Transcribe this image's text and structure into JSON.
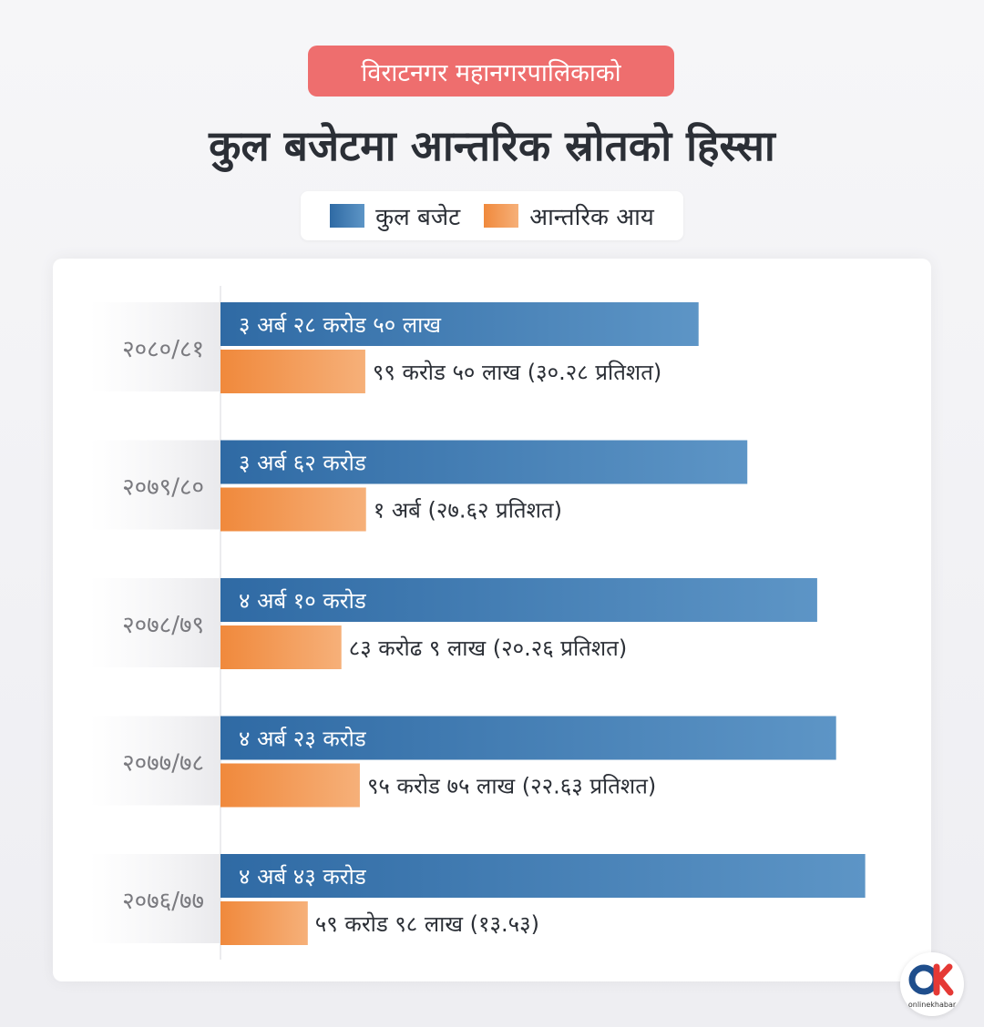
{
  "subtitle": "विराटनगर महानगरपालिकाको",
  "title": "कुल बजेटमा आन्तरिक स्रोतको हिस्सा",
  "legend": {
    "total": "कुल बजेट",
    "internal": "आन्तरिक आय"
  },
  "colors": {
    "total_start": "#2f6aa4",
    "total_end": "#5d95c6",
    "internal_start": "#f0893c",
    "internal_end": "#f6b079",
    "accent": "#ee6e6e"
  },
  "logo": {
    "icon": "onlinekhabar-logo",
    "text": "onlinekhabar"
  },
  "chart_data": {
    "type": "bar",
    "orientation": "horizontal",
    "categories": [
      "२०८०/८१",
      "२०७९/८०",
      "२०७८/७९",
      "२०७७/७८",
      "२०७६/७७"
    ],
    "unit": "करोड",
    "series": [
      {
        "name": "कुल बजेट",
        "values": [
          328.5,
          362,
          410,
          423,
          443
        ],
        "labels": [
          "३ अर्ब २८ करोड ५० लाख",
          "३ अर्ब ६२ करोड",
          "४ अर्ब १० करोड",
          "४ अर्ब २३ करोड",
          "४ अर्ब ४३ करोड"
        ]
      },
      {
        "name": "आन्तरिक आय",
        "values": [
          99.5,
          100,
          83.09,
          95.75,
          59.98
        ],
        "labels": [
          "९९ करोड ५० लाख (३०.२८ प्रतिशत)",
          "१ अर्ब (२७.६२ प्रतिशत)",
          "८३ करोढ ९ लाख (२०.२६ प्रतिशत)",
          "९५ करोड ७५ लाख (२२.६३ प्रतिशत)",
          "५९ करोड ९८ लाख (१३.५३)"
        ]
      }
    ],
    "xlim": [
      0,
      452
    ]
  }
}
